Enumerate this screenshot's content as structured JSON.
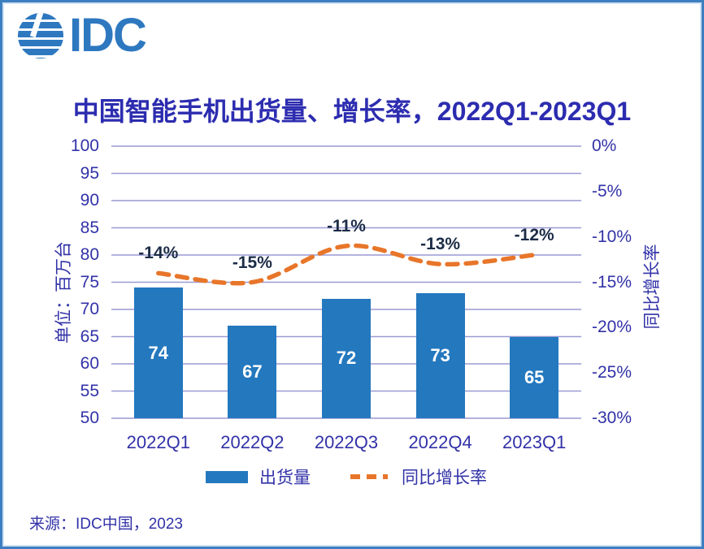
{
  "logo": {
    "text": "IDC"
  },
  "chart_data": {
    "type": "combo-bar-line",
    "title": "中国智能手机出货量、增长率，2022Q1-2023Q1",
    "categories": [
      "2022Q1",
      "2022Q2",
      "2022Q3",
      "2022Q4",
      "2023Q1"
    ],
    "series": [
      {
        "name": "出货量",
        "type": "bar",
        "axis": "left",
        "values": [
          74,
          67,
          72,
          73,
          65
        ],
        "color": "#2478be"
      },
      {
        "name": "同比增长率",
        "type": "line",
        "style": "dashed-smooth",
        "axis": "right",
        "values": [
          -14,
          -15,
          -11,
          -13,
          -12
        ],
        "labels": [
          "-14%",
          "-15%",
          "-11%",
          "-13%",
          "-12%"
        ],
        "color": "#e8762a"
      }
    ],
    "left_axis": {
      "title": "单位：百万台",
      "min": 50,
      "max": 100,
      "step": 5,
      "ticks": [
        "100",
        "95",
        "90",
        "85",
        "80",
        "75",
        "70",
        "65",
        "60",
        "55",
        "50"
      ]
    },
    "right_axis": {
      "title": "同比增长率",
      "min": -30,
      "max": 0,
      "step": 5,
      "ticks": [
        "0%",
        "-5%",
        "-10%",
        "-15%",
        "-20%",
        "-25%",
        "-30%"
      ]
    },
    "grid": true,
    "legend_position": "bottom"
  },
  "legend": {
    "bar_label": "出货量",
    "line_label": "同比增长率"
  },
  "source": "来源：IDC中国，2023",
  "colors": {
    "bar": "#2478be",
    "line": "#e8762a",
    "gridline": "#9a9ad4",
    "axis_text": "#3232a8",
    "title_text": "#2c2cb0",
    "data_label": "#1c2c47",
    "bar_value_text": "#ffffff",
    "frame_border": "#3d7ec1",
    "logo_blue": "#2e78c0",
    "background": "#ffffff"
  }
}
